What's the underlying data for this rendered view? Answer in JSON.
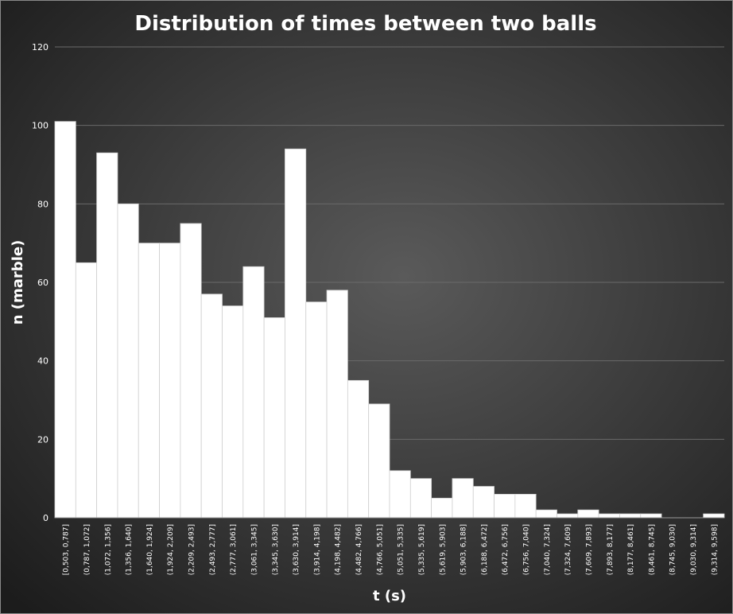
{
  "chart_data": {
    "type": "bar",
    "title": "Distribution  of times between two balls",
    "xlabel": "t (s)",
    "ylabel": "n (marble)",
    "ylim": [
      0,
      120
    ],
    "yticks": [
      "0",
      "20",
      "40",
      "60",
      "80",
      "100",
      "120"
    ],
    "grid": true,
    "categories": [
      "[0,503, 0,787]",
      "(0,787, 1,072]",
      "(1,072, 1,356]",
      "(1,356, 1,640]",
      "(1,640, 1,924]",
      "(1,924, 2,209]",
      "(2,209, 2,493]",
      "(2,493, 2,777]",
      "(2,777, 3,061]",
      "(3,061, 3,345]",
      "(3,345, 3,630]",
      "(3,630, 3,914]",
      "(3,914, 4,198]",
      "(4,198, 4,482]",
      "(4,482, 4,766]",
      "(4,766, 5,051]",
      "(5,051, 5,335]",
      "(5,335, 5,619]",
      "(5,619, 5,903]",
      "(5,903, 6,188]",
      "(6,188, 6,472]",
      "(6,472, 6,756]",
      "(6,756, 7,040]",
      "(7,040, 7,324]",
      "(7,324, 7,609]",
      "(7,609, 7,893]",
      "(7,893, 8,177]",
      "(8,177, 8,461]",
      "(8,461, 8,745]",
      "(8,745, 9,030]",
      "(9,030, 9,314]",
      "(9,314, 9,598]"
    ],
    "values": [
      101,
      65,
      93,
      80,
      70,
      70,
      75,
      57,
      54,
      64,
      51,
      94,
      55,
      58,
      35,
      29,
      12,
      10,
      5,
      10,
      8,
      6,
      6,
      2,
      1,
      2,
      1,
      1,
      1,
      0,
      0,
      1
    ],
    "colors": {
      "bar_fill": "#ffffff",
      "bar_stroke": "#cfcfcf",
      "text": "#ffffff",
      "grid": "#6a6a6a",
      "background_center": "#5a5a5a",
      "background_edge": "#1c1c1c"
    }
  }
}
